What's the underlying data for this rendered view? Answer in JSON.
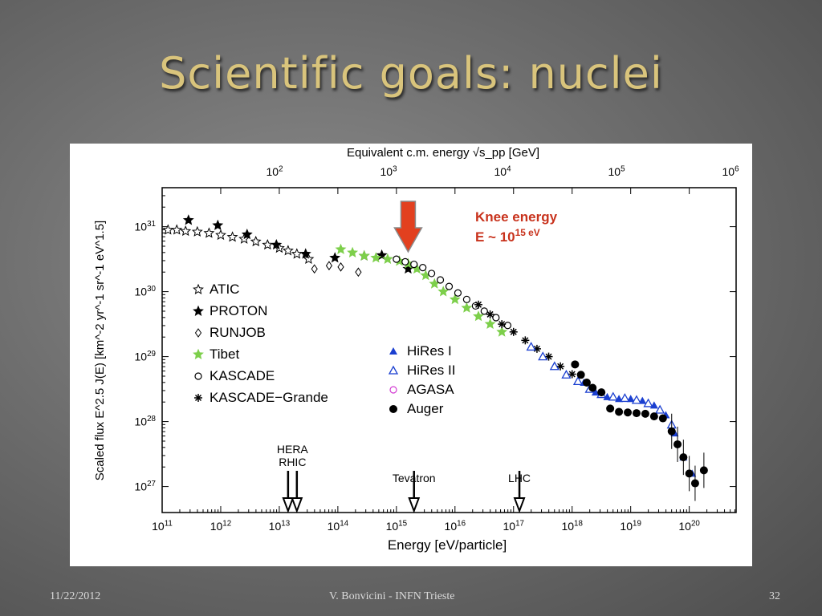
{
  "slide": {
    "title": "Scientific goals: nuclei",
    "footer_date": "11/22/2012",
    "footer_author": "V. Bonvicini - INFN Trieste",
    "footer_page": "32"
  },
  "chart_data": {
    "type": "scatter",
    "xlabel": "Energy [eV/particle]",
    "ylabel": "Scaled flux  E^2.5 J(E) [km^-2 yr^-1 sr^-1 eV^1.5]",
    "top_axis_label": "Equivalent c.m. energy √s_pp  [GeV]",
    "x_log_range": [
      11,
      20.8
    ],
    "y_log_range": [
      26.6,
      31.6
    ],
    "x_tick_labels": [
      "10^11",
      "10^12",
      "10^13",
      "10^14",
      "10^15",
      "10^16",
      "10^17",
      "10^18",
      "10^19",
      "10^20"
    ],
    "y_tick_labels": [
      "10^27",
      "10^28",
      "10^29",
      "10^30",
      "10^31"
    ],
    "top_tick_labels": [
      "10^2",
      "10^3",
      "10^4",
      "10^5",
      "10^6"
    ],
    "knee_annotation": [
      "Knee energy",
      "E ~ 10^15  eV"
    ],
    "knee_arrow_log_energy": 15.2,
    "accelerators": [
      {
        "label": "HERA",
        "log_e": 13.15
      },
      {
        "label": "RHIC",
        "log_e": 13.3
      },
      {
        "label": "Tevatron",
        "log_e": 15.3
      },
      {
        "label": "LHC",
        "log_e": 17.1
      }
    ],
    "legend_left": [
      "ATIC",
      "PROTON",
      "RUNJOB",
      "Tibet",
      "KASCADE",
      "KASCADE−Grande"
    ],
    "legend_right": [
      "HiRes I",
      "HiRes II",
      "AGASA",
      "Auger"
    ],
    "series": [
      {
        "name": "ATIC",
        "marker": "star-open",
        "color": "#000000",
        "points": [
          [
            11.1,
            30.95
          ],
          [
            11.25,
            30.95
          ],
          [
            11.4,
            30.93
          ],
          [
            11.6,
            30.92
          ],
          [
            11.8,
            30.9
          ],
          [
            12.0,
            30.87
          ],
          [
            12.2,
            30.84
          ],
          [
            12.4,
            30.81
          ],
          [
            12.6,
            30.77
          ],
          [
            12.8,
            30.72
          ],
          [
            13.0,
            30.67
          ],
          [
            13.15,
            30.63
          ],
          [
            13.3,
            30.58
          ],
          [
            13.5,
            30.5
          ]
        ]
      },
      {
        "name": "PROTON",
        "marker": "star-filled",
        "color": "#000000",
        "points": [
          [
            11.45,
            31.1
          ],
          [
            11.95,
            31.02
          ],
          [
            12.45,
            30.88
          ],
          [
            12.95,
            30.72
          ],
          [
            13.45,
            30.58
          ],
          [
            13.95,
            30.52
          ],
          [
            14.45,
            30.55
          ],
          [
            14.75,
            30.56
          ],
          [
            15.2,
            30.35
          ]
        ]
      },
      {
        "name": "RUNJOB",
        "marker": "diamond-open",
        "color": "#000000",
        "points": [
          [
            13.6,
            30.35
          ],
          [
            13.85,
            30.4
          ],
          [
            14.05,
            30.38
          ],
          [
            14.35,
            30.3
          ]
        ]
      },
      {
        "name": "Tibet",
        "marker": "star-filled",
        "color": "#7dcf4b",
        "points": [
          [
            14.05,
            30.65
          ],
          [
            14.25,
            30.6
          ],
          [
            14.45,
            30.55
          ],
          [
            14.65,
            30.52
          ],
          [
            14.85,
            30.5
          ],
          [
            15.05,
            30.47
          ],
          [
            15.2,
            30.43
          ],
          [
            15.35,
            30.35
          ],
          [
            15.5,
            30.25
          ],
          [
            15.65,
            30.12
          ],
          [
            15.8,
            30.0
          ],
          [
            16.0,
            29.88
          ],
          [
            16.2,
            29.75
          ],
          [
            16.4,
            29.62
          ],
          [
            16.6,
            29.5
          ],
          [
            16.8,
            29.38
          ]
        ]
      },
      {
        "name": "KASCADE",
        "marker": "circle-open",
        "color": "#000000",
        "points": [
          [
            15.0,
            30.5
          ],
          [
            15.15,
            30.46
          ],
          [
            15.3,
            30.42
          ],
          [
            15.45,
            30.37
          ],
          [
            15.6,
            30.28
          ],
          [
            15.75,
            30.18
          ],
          [
            15.9,
            30.08
          ],
          [
            16.05,
            29.98
          ],
          [
            16.2,
            29.88
          ],
          [
            16.35,
            29.78
          ],
          [
            16.5,
            29.7
          ],
          [
            16.7,
            29.6
          ],
          [
            16.9,
            29.48
          ]
        ]
      },
      {
        "name": "KASCADE−Grande",
        "marker": "asterisk",
        "color": "#000000",
        "points": [
          [
            16.4,
            29.8
          ],
          [
            16.6,
            29.65
          ],
          [
            16.8,
            29.5
          ],
          [
            17.0,
            29.38
          ],
          [
            17.2,
            29.25
          ],
          [
            17.4,
            29.12
          ],
          [
            17.6,
            29.0
          ],
          [
            17.8,
            28.85
          ],
          [
            18.0,
            28.73
          ]
        ]
      },
      {
        "name": "HiRes I",
        "marker": "triangle-filled",
        "color": "#1a3fd0",
        "points": [
          [
            18.2,
            28.6
          ],
          [
            18.4,
            28.45
          ],
          [
            18.6,
            28.38
          ],
          [
            18.8,
            28.35
          ],
          [
            19.0,
            28.35
          ],
          [
            19.2,
            28.32
          ],
          [
            19.4,
            28.25
          ],
          [
            19.6,
            28.1
          ],
          [
            19.75,
            27.82
          ],
          [
            19.9,
            27.45
          ],
          [
            20.05,
            27.2
          ]
        ]
      },
      {
        "name": "HiRes II",
        "marker": "triangle-open",
        "color": "#1a3fd0",
        "points": [
          [
            17.3,
            29.15
          ],
          [
            17.5,
            29.0
          ],
          [
            17.7,
            28.85
          ],
          [
            17.9,
            28.72
          ],
          [
            18.1,
            28.62
          ],
          [
            18.3,
            28.5
          ],
          [
            18.5,
            28.42
          ],
          [
            18.7,
            28.38
          ],
          [
            18.9,
            28.36
          ],
          [
            19.1,
            28.33
          ],
          [
            19.3,
            28.28
          ],
          [
            19.5,
            28.18
          ],
          [
            19.7,
            27.95
          ]
        ]
      },
      {
        "name": "AGASA",
        "marker": "circle-open",
        "color": "#d23ad2",
        "points": []
      },
      {
        "name": "Auger",
        "marker": "circle-filled",
        "color": "#000000",
        "points": [
          [
            18.05,
            28.88
          ],
          [
            18.15,
            28.72
          ],
          [
            18.25,
            28.6
          ],
          [
            18.35,
            28.52
          ],
          [
            18.5,
            28.45
          ],
          [
            18.65,
            28.2
          ],
          [
            18.8,
            28.15
          ],
          [
            18.95,
            28.14
          ],
          [
            19.1,
            28.13
          ],
          [
            19.25,
            28.12
          ],
          [
            19.4,
            28.08
          ],
          [
            19.55,
            28.05
          ],
          [
            19.7,
            27.85
          ],
          [
            19.8,
            27.65
          ],
          [
            19.9,
            27.45
          ],
          [
            20.0,
            27.2
          ],
          [
            20.1,
            27.05
          ],
          [
            20.25,
            27.25
          ]
        ]
      }
    ]
  }
}
